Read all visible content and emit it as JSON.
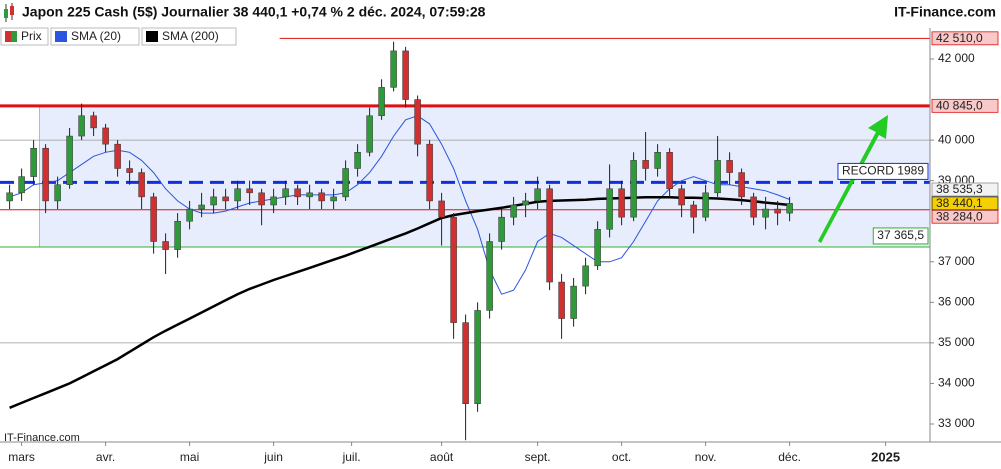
{
  "chart_data": {
    "type": "candlestick",
    "title": "Japon 225 Cash (5$) Journalier 38 440,1 +0,74 % 2 déc. 2024, 07:59:28",
    "source": "IT-Finance.com",
    "watermark": "IT-Finance.com",
    "price_legend": "Prix",
    "up_color": "#2f9a3a",
    "down_color": "#d23030",
    "open": [
      38500,
      38700,
      39100,
      39800,
      38500,
      38900,
      40100,
      40600,
      40300,
      39900,
      39300,
      39200,
      38600,
      37500,
      37300,
      38000,
      38300,
      38400,
      38600,
      38500,
      38800,
      38700,
      38400,
      38600,
      38800,
      38600,
      38700,
      38500,
      38600,
      39300,
      39700,
      40600,
      41300,
      42200,
      41000,
      39900,
      38500,
      38100,
      35500,
      33500,
      35800,
      37500,
      38100,
      38400,
      38500,
      38800,
      36500,
      35600,
      36400,
      36900,
      37800,
      38800,
      38100,
      39500,
      39300,
      39700,
      38800,
      38400,
      38100,
      38700,
      39500,
      39200,
      38600,
      38100,
      38300,
      38200
    ],
    "high": [
      38900,
      39300,
      40000,
      39900,
      39100,
      40300,
      40900,
      40700,
      40400,
      40000,
      39500,
      39300,
      38700,
      37700,
      38200,
      38500,
      38700,
      38800,
      38800,
      39000,
      39000,
      38800,
      38800,
      39000,
      38900,
      38900,
      38800,
      38800,
      39500,
      39900,
      40800,
      41500,
      42426,
      42300,
      41100,
      40000,
      38700,
      38200,
      35700,
      36000,
      37700,
      38300,
      38600,
      38700,
      39100,
      38900,
      36700,
      36600,
      37100,
      38000,
      39400,
      39000,
      39700,
      40200,
      39900,
      39800,
      38900,
      38500,
      38900,
      40100,
      39700,
      39300,
      38700,
      38600,
      38500,
      38600
    ],
    "low": [
      38300,
      38500,
      38900,
      38200,
      38300,
      38800,
      40000,
      40100,
      39700,
      39100,
      38900,
      38300,
      37200,
      36700,
      37100,
      37800,
      38100,
      38200,
      38300,
      38300,
      38400,
      37900,
      38200,
      38400,
      38400,
      38300,
      38300,
      38300,
      38500,
      39100,
      39600,
      40500,
      41200,
      40800,
      39600,
      38300,
      37400,
      35100,
      32600,
      33300,
      35600,
      37300,
      37900,
      38100,
      38300,
      36300,
      35100,
      35400,
      36200,
      36800,
      37600,
      37900,
      38000,
      39000,
      39100,
      38600,
      38100,
      37700,
      38000,
      38600,
      38900,
      38400,
      37900,
      37800,
      37900,
      38000
    ],
    "close": [
      38700,
      39100,
      39800,
      38500,
      38900,
      40100,
      40600,
      40300,
      39900,
      39300,
      39200,
      38600,
      37500,
      37300,
      38000,
      38300,
      38400,
      38600,
      38500,
      38800,
      38700,
      38400,
      38600,
      38800,
      38600,
      38700,
      38500,
      38600,
      39300,
      39700,
      40600,
      41300,
      42200,
      41000,
      39900,
      38500,
      38100,
      35500,
      33500,
      35800,
      37500,
      38100,
      38400,
      38500,
      38800,
      36500,
      35600,
      36400,
      36900,
      37800,
      38800,
      38100,
      39500,
      39300,
      39700,
      38800,
      38400,
      38100,
      38700,
      39500,
      39200,
      38600,
      38100,
      38300,
      38200,
      38440.1
    ],
    "series": [
      {
        "name": "SMA (20)",
        "color": "#2a55e0",
        "values": [
          38600,
          38700,
          38900,
          38950,
          39000,
          39200,
          39400,
          39600,
          39700,
          39750,
          39700,
          39500,
          39200,
          38800,
          38500,
          38300,
          38200,
          38200,
          38250,
          38350,
          38450,
          38500,
          38550,
          38600,
          38650,
          38650,
          38650,
          38650,
          38700,
          38900,
          39200,
          39600,
          40100,
          40500,
          40600,
          40400,
          39900,
          39300,
          38500,
          37800,
          36800,
          36200,
          36300,
          36800,
          37500,
          37700,
          37600,
          37400,
          37200,
          37000,
          37000,
          37100,
          37500,
          38000,
          38500,
          38800,
          39000,
          39100,
          39000,
          38900,
          38900,
          38850,
          38800,
          38750,
          38650,
          38535.3
        ]
      },
      {
        "name": "SMA (200)",
        "color": "#000000",
        "values": [
          33400,
          33520,
          33640,
          33760,
          33880,
          34000,
          34150,
          34300,
          34450,
          34600,
          34780,
          34960,
          35140,
          35300,
          35450,
          35600,
          35750,
          35900,
          36050,
          36200,
          36330,
          36440,
          36550,
          36650,
          36750,
          36850,
          36950,
          37050,
          37150,
          37260,
          37370,
          37480,
          37590,
          37700,
          37820,
          37950,
          38080,
          38150,
          38200,
          38250,
          38290,
          38330,
          38380,
          38430,
          38480,
          38500,
          38510,
          38520,
          38530,
          38550,
          38560,
          38570,
          38580,
          38590,
          38590,
          38590,
          38580,
          38580,
          38570,
          38560,
          38540,
          38520,
          38490,
          38460,
          38430,
          38400
        ]
      }
    ],
    "xlim": [
      -0.8,
      76.7
    ],
    "xticks": [
      {
        "value": 1,
        "label": "mars"
      },
      {
        "value": 8,
        "label": "avr."
      },
      {
        "value": 15,
        "label": "mai"
      },
      {
        "value": 22,
        "label": "juin"
      },
      {
        "value": 28.5,
        "label": "juil."
      },
      {
        "value": 36,
        "label": "août"
      },
      {
        "value": 44,
        "label": "sept."
      },
      {
        "value": 51,
        "label": "oct."
      },
      {
        "value": 58,
        "label": "nov."
      },
      {
        "value": 65,
        "label": "déc."
      },
      {
        "value": 73,
        "label": "2025"
      }
    ],
    "ylim": [
      32556,
      42715
    ],
    "yticks": [
      {
        "value": 42000,
        "label": "42 000"
      },
      {
        "value": 40000,
        "label": "40 000"
      },
      {
        "value": 39000,
        "label": "39 000"
      },
      {
        "value": 37000,
        "label": "37 000"
      },
      {
        "value": 36000,
        "label": "36 000"
      },
      {
        "value": 35000,
        "label": "35 000"
      },
      {
        "value": 34000,
        "label": "34 000"
      },
      {
        "value": 33000,
        "label": "33 000"
      }
    ],
    "grid_lines": [
      40000,
      35000
    ],
    "zone": [
      37365.5,
      40845
    ],
    "zone_from": 2.5,
    "levels": [
      {
        "value": 42510,
        "label": "42 510,0",
        "color": "#e01010",
        "bg": "#f9c8c8",
        "line": "solid",
        "from": 22.5,
        "label_side": "axis"
      },
      {
        "value": 40845,
        "label": "40 845,0",
        "color": "#e01010",
        "bg": "#f9c8c8",
        "line": "thick",
        "from": -0.8,
        "label_side": "axis"
      },
      {
        "value": 38957,
        "label": "RECORD 1989",
        "color": "#1030e0",
        "bg": "#ffffff",
        "line": "dashed",
        "from": -0.8,
        "label_side": "inside"
      },
      {
        "value": 38535.3,
        "label": "38 535,3",
        "color": "#909090",
        "bg": "#f2f2f2",
        "line": "none",
        "from": -0.8,
        "label_side": "axis"
      },
      {
        "value": 38284,
        "label": "38 284,0",
        "color": "#e01010",
        "bg": "#f9c8c8",
        "line": "solid",
        "from": -0.8,
        "label_side": "axis"
      },
      {
        "value": 37365.5,
        "label": "37 365,5",
        "color": "#30b030",
        "bg": "#ffffff",
        "line": "solid",
        "from": -0.8,
        "label_side": "inside"
      },
      {
        "value": 38440.1,
        "label": "38 440,1",
        "color": "#222222",
        "bg": "#f5d000",
        "line": "none",
        "from": -0.8,
        "label_side": "axis"
      }
    ]
  }
}
